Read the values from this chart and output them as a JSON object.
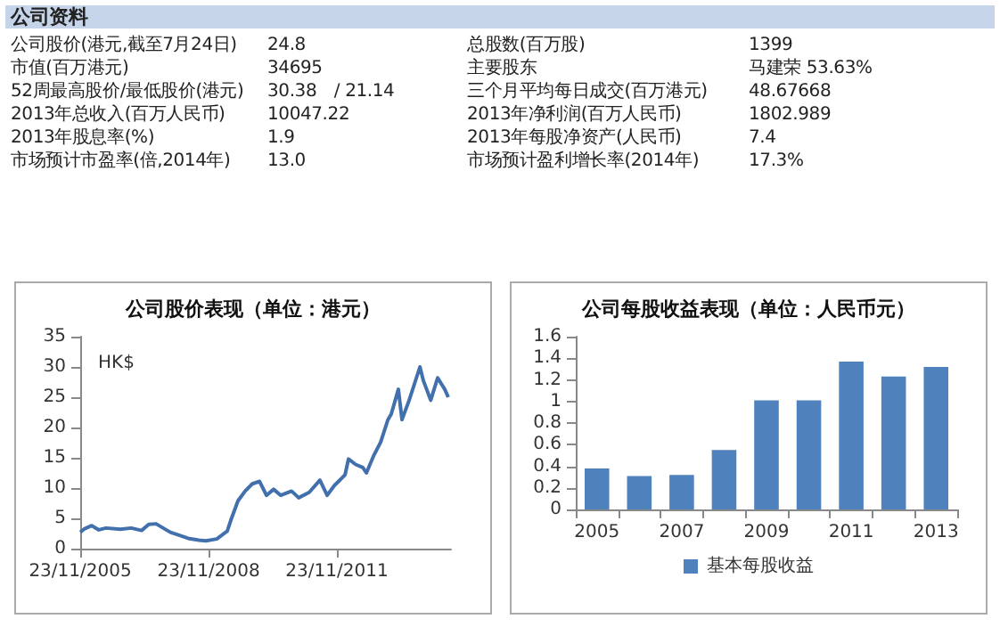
{
  "chart_data": [
    {
      "type": "other",
      "title": "公司资料",
      "annotations": [
        "公司股价(港元,截至7月24日)",
        "24.8",
        "总股数(百万股)",
        "1399",
        "市值(百万港元)",
        "34695",
        "主要股东",
        "马建荣 53.63%",
        "52周最高股价/最低股价(港元)",
        "30.38　/ 21.14",
        "三个月平均每日成交(百万港元)",
        "48.67668",
        "2013年总收入(百万人民币)",
        "10047.22",
        "2013年净利润(百万人民币)",
        "1802.989",
        "2013年股息率(%)",
        "1.9",
        "2013年每股净资产(人民币)",
        "7.4",
        "市场预计市盈率(倍,2014年)",
        "13.0",
        "市场预计盈利增长率(2014年)",
        "17.3%"
      ]
    },
    {
      "type": "line",
      "title": "公司股价表现（单位：港元）",
      "ylabel": "HK$",
      "color": "#4170ad",
      "marker": "none",
      "line_style": "solid",
      "x": [
        "2005-11-23",
        "2006-01",
        "2006-03",
        "2006-05",
        "2006-07",
        "2006-11",
        "2007-02",
        "2007-05",
        "2007-07",
        "2007-09",
        "2007-11",
        "2008-01",
        "2008-04",
        "2008-06",
        "2008-09",
        "2008-11",
        "2009-02",
        "2009-05",
        "2009-06",
        "2009-08",
        "2009-10",
        "2009-12",
        "2010-02",
        "2010-04",
        "2010-06",
        "2010-08",
        "2010-11",
        "2011-01",
        "2011-04",
        "2011-07",
        "2011-09",
        "2011-11",
        "2012-02",
        "2012-03",
        "2012-05",
        "2012-07",
        "2012-08",
        "2012-10",
        "2012-12",
        "2013-02",
        "2013-03",
        "2013-05",
        "2013-06",
        "2013-08",
        "2013-11",
        "2013-12",
        "2014-02",
        "2014-04",
        "2014-06",
        "2014-07"
      ],
      "values": [
        2.7,
        3.3,
        3.8,
        3.1,
        3.4,
        3.2,
        3.4,
        3.0,
        4.0,
        4.1,
        3.4,
        2.7,
        2.1,
        1.7,
        1.4,
        1.3,
        1.6,
        2.9,
        4.7,
        7.9,
        9.5,
        10.7,
        11.1,
        8.8,
        9.8,
        8.8,
        9.5,
        8.4,
        9.3,
        11.3,
        8.8,
        10.4,
        12.2,
        14.8,
        13.9,
        13.4,
        12.5,
        15.3,
        17.6,
        21.3,
        22.2,
        26.3,
        21.3,
        24.5,
        30.0,
        27.7,
        24.5,
        28.2,
        26.3,
        25.0
      ],
      "xlim": [
        "2005-11-23",
        "2014-07-24"
      ],
      "xticks": [
        {
          "value": "2005-11-23",
          "label": "23/11/2005"
        },
        {
          "value": "2008-11-23",
          "label": "23/11/2008"
        },
        {
          "value": "2011-11-23",
          "label": "23/11/2011"
        }
      ],
      "ylim": [
        0,
        35
      ],
      "yticks": [
        0,
        5,
        10,
        15,
        20,
        25,
        30,
        35
      ]
    },
    {
      "type": "bar",
      "title": "公司每股收益表现（单位：人民币元）",
      "legend": "bottom",
      "categories": [
        "2005",
        null,
        "2007",
        null,
        "2009",
        null,
        "2011",
        null,
        "2013"
      ],
      "series": [
        {
          "name": "基本每股收益",
          "color": "#4f81bd",
          "values": [
            0.38,
            0.31,
            0.32,
            0.55,
            1.01,
            1.01,
            1.37,
            1.23,
            1.32
          ]
        }
      ],
      "ylim": [
        0,
        1.6
      ],
      "yticks": [
        0,
        0.2,
        0.4,
        0.6,
        0.8,
        1,
        1.2,
        1.4,
        1.6
      ]
    }
  ]
}
